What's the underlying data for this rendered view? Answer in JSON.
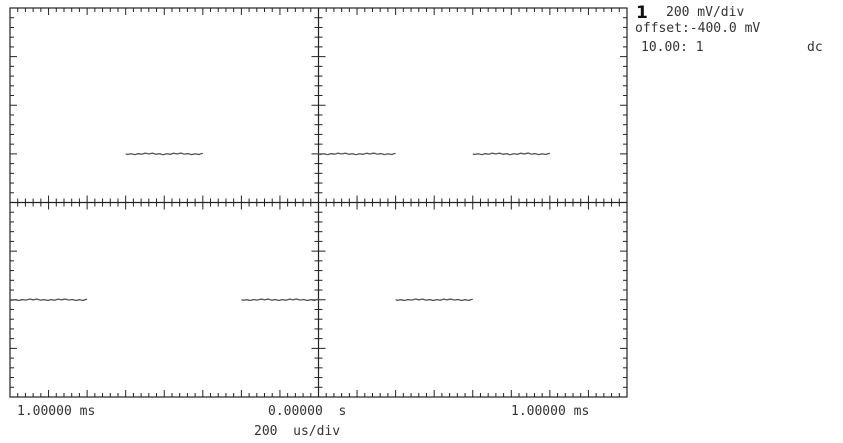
{
  "channel": {
    "number": "1",
    "scale": "200 mV/div",
    "offset": "offset:-400.0 mV",
    "probe": "10.00: 1",
    "coupling": "dc"
  },
  "timebase": {
    "left_label": "1.00000 ms",
    "center_label": "0.00000  s",
    "right_label": "1.00000 ms",
    "scale_label": "200  us/div"
  },
  "colors": {
    "trace": "#555555",
    "graticule": "#222222"
  },
  "chart_data": {
    "type": "line",
    "title": "",
    "xlabel": "200 us/div",
    "ylabel": "200 mV/div",
    "grid": "crosshair with tick marks",
    "legend": "none",
    "x_unit": "ms",
    "xlim": [
      -1.6,
      1.6
    ],
    "ylim": [
      -1.2,
      0.4
    ],
    "series": [
      {
        "segments": [
          {
            "x": [
              -1.0,
              -0.6
            ],
            "y": [
              -0.2,
              -0.2
            ]
          },
          {
            "x": [
              0.0,
              0.4
            ],
            "y": [
              -0.2,
              -0.2
            ]
          },
          {
            "x": [
              0.8,
              1.2
            ],
            "y": [
              -0.2,
              -0.2
            ]
          },
          {
            "x": [
              -1.6,
              -1.2
            ],
            "y": [
              -0.8,
              -0.8
            ]
          },
          {
            "x": [
              -0.4,
              0.0
            ],
            "y": [
              -0.8,
              -0.8
            ]
          },
          {
            "x": [
              0.4,
              0.8
            ],
            "y": [
              -0.8,
              -0.8
            ]
          }
        ]
      }
    ]
  }
}
